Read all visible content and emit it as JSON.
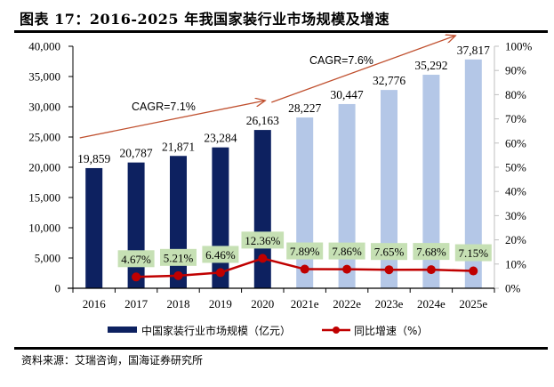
{
  "header": {
    "title": "图表 17：2016-2025 年我国家装行业市场规模及增速"
  },
  "footer": {
    "source": "资料来源：艾瑞咨询，国海证券研究所"
  },
  "colors": {
    "bar_actual": "#0d2160",
    "bar_forecast": "#b4c7e7",
    "growth_line": "#c00000",
    "label_bg": "#c6e0b4",
    "arrow": "#c0502f",
    "axis_right": "#bfbfbf"
  },
  "chart_data": {
    "type": "bar",
    "title": "2016-2025 年我国家装行业市场规模及增速",
    "categories": [
      "2016",
      "2017",
      "2018",
      "2019",
      "2020",
      "2021e",
      "2022e",
      "2023e",
      "2024e",
      "2025e"
    ],
    "series": [
      {
        "name": "中国家装行业市场规模（亿元）",
        "type": "bar",
        "axis": "left",
        "values": [
          19859,
          20787,
          21871,
          23284,
          26163,
          28227,
          30447,
          32776,
          35292,
          37817
        ],
        "labels": [
          "19,859",
          "20,787",
          "21,871",
          "23,284",
          "26,163",
          "28,227",
          "30,447",
          "32,776",
          "35,292",
          "37,817"
        ],
        "forecast_from_index": 5
      },
      {
        "name": "同比增速（%）",
        "type": "line",
        "axis": "right",
        "values": [
          null,
          4.67,
          5.21,
          6.46,
          12.36,
          7.89,
          7.86,
          7.65,
          7.68,
          7.15
        ],
        "labels": [
          null,
          "4.67%",
          "5.21%",
          "6.46%",
          "12.36%",
          "7.89%",
          "7.86%",
          "7.65%",
          "7.68%",
          "7.15%"
        ]
      }
    ],
    "y_left": {
      "range": [
        0,
        40000
      ],
      "ticks": [
        "0",
        "5,000",
        "10,000",
        "15,000",
        "20,000",
        "25,000",
        "30,000",
        "35,000",
        "40,000"
      ],
      "tick_values": [
        0,
        5000,
        10000,
        15000,
        20000,
        25000,
        30000,
        35000,
        40000
      ]
    },
    "y_right": {
      "range": [
        0,
        100
      ],
      "ticks": [
        "0%",
        "10%",
        "20%",
        "30%",
        "40%",
        "50%",
        "60%",
        "70%",
        "80%",
        "90%",
        "100%"
      ],
      "tick_values": [
        0,
        10,
        20,
        30,
        40,
        50,
        60,
        70,
        80,
        90,
        100
      ]
    },
    "annotations": [
      {
        "text": "CAGR=7.1%",
        "from": "2016",
        "to": "2020",
        "type": "arrow"
      },
      {
        "text": "CAGR=7.6%",
        "from": "2020",
        "to": "2025e",
        "type": "arrow"
      }
    ],
    "grid": false,
    "legend": {
      "position": "bottom",
      "entries": [
        "中国家装行业市场规模（亿元）",
        "同比增速（%）"
      ]
    },
    "xlabel": "",
    "ylabel": ""
  }
}
